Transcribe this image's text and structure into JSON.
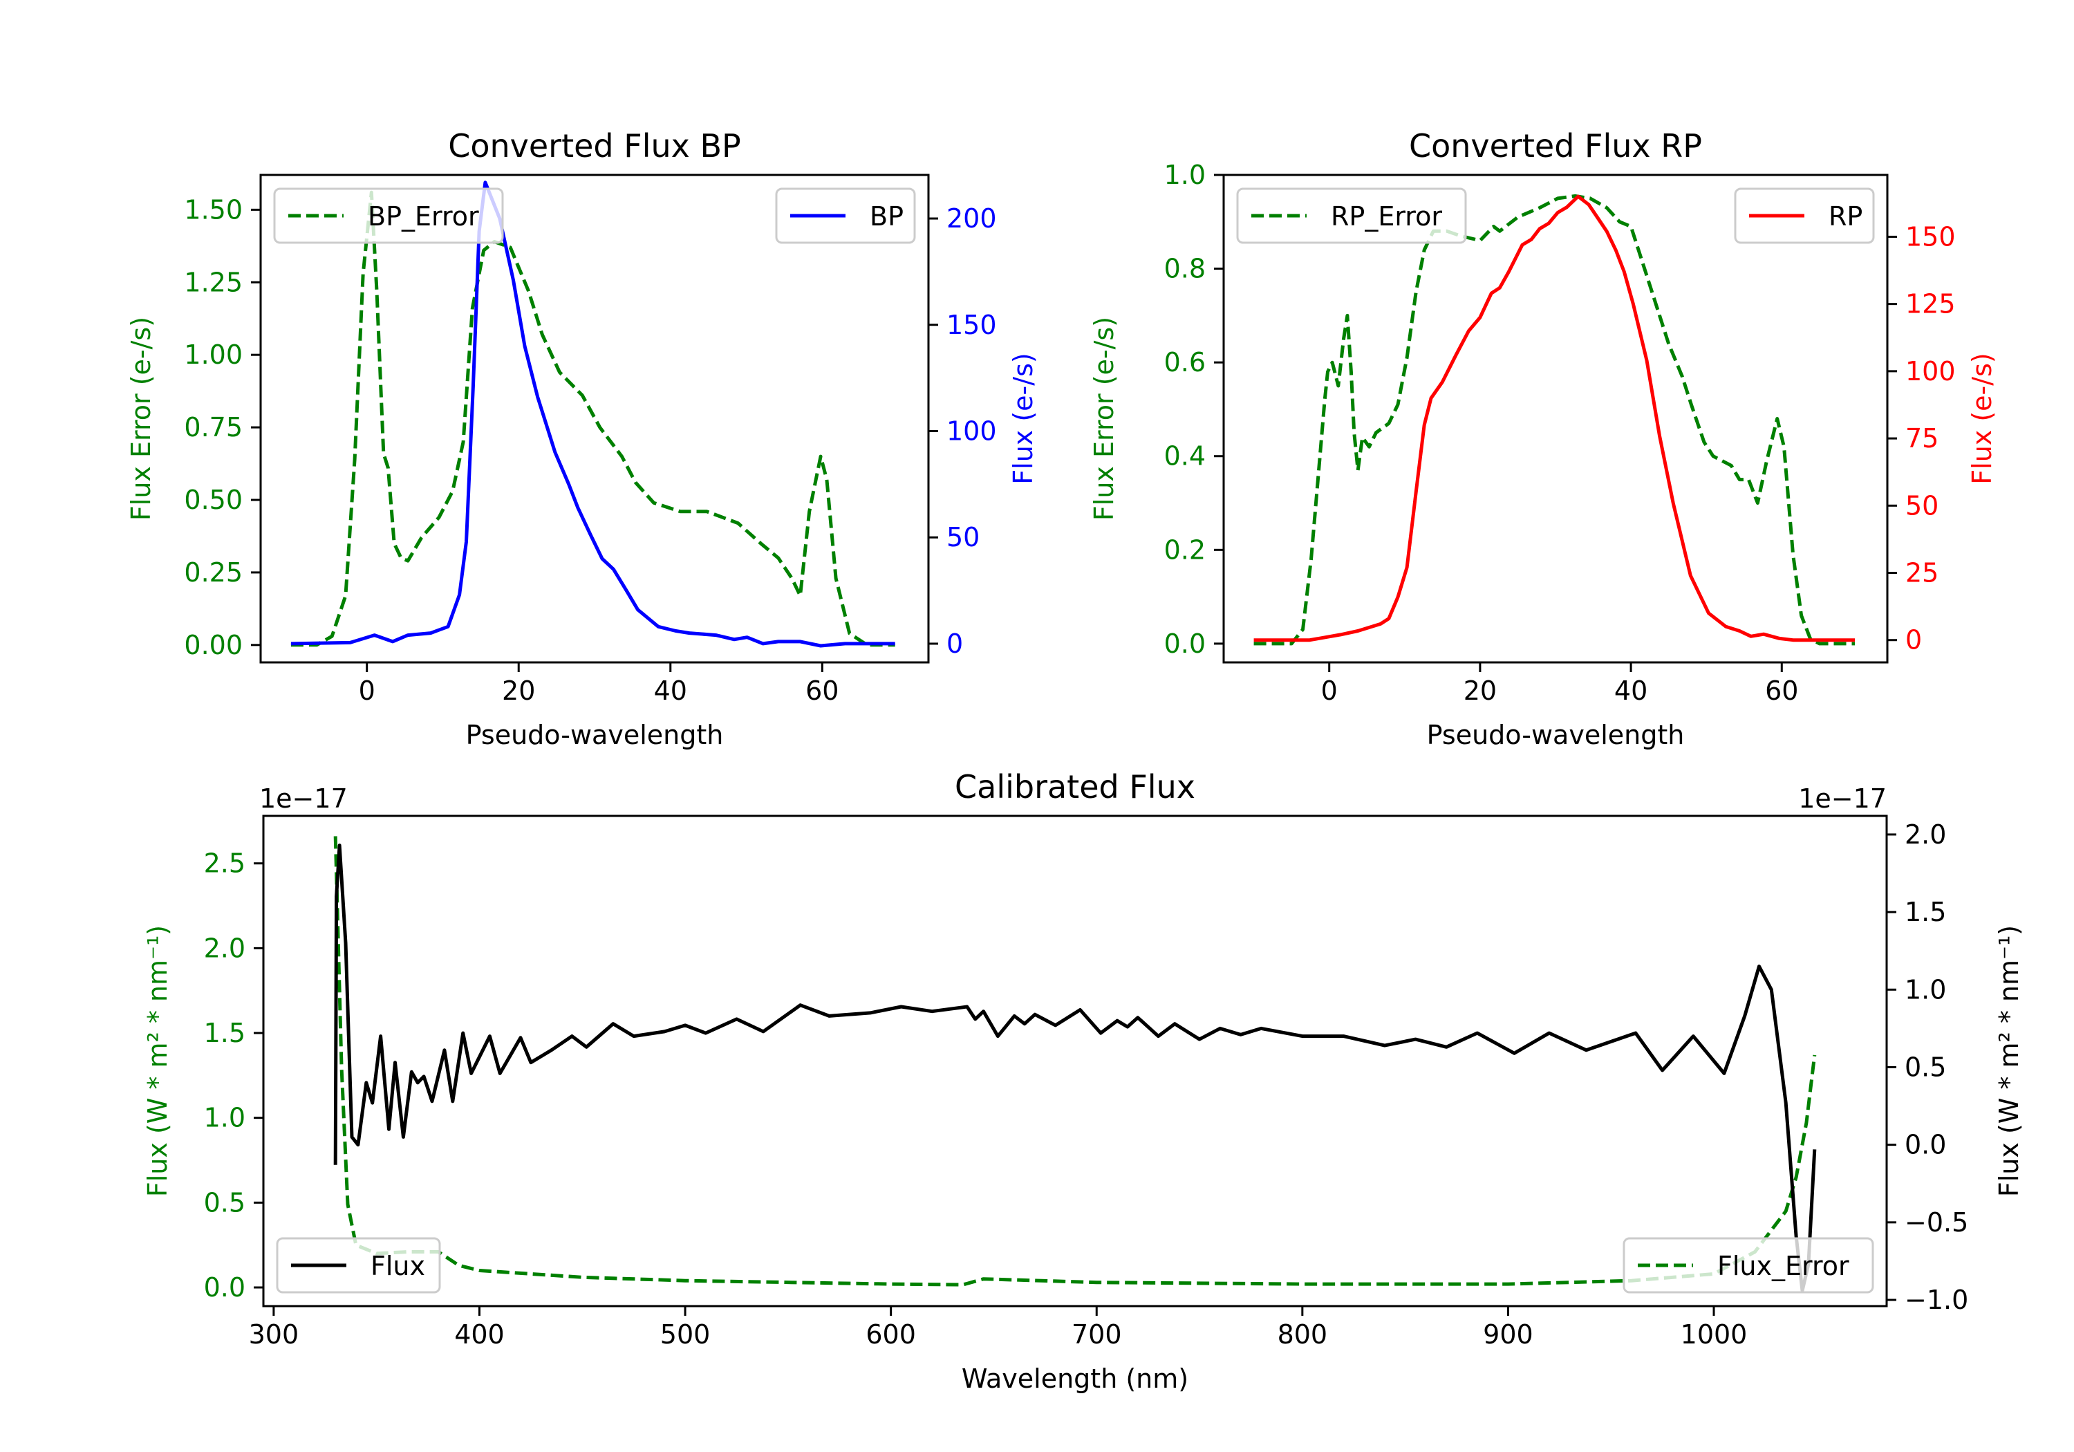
{
  "figure": {
    "background": "#ffffff"
  },
  "colors": {
    "error": "#008000",
    "bp": "#0000ff",
    "rp": "#ff0000",
    "flux": "#000000",
    "axis": "#000000",
    "legend_border": "#cccccc"
  },
  "chart_data": [
    {
      "id": "bp",
      "type": "line",
      "title": "Converted Flux BP",
      "xlabel": "Pseudo-wavelength",
      "ylabel": "Flux Error (e-/s)",
      "ylabel_right": "Flux (e-/s)",
      "xlim": [
        -14,
        74
      ],
      "ylim": [
        -0.06,
        1.62
      ],
      "ylim_right": [
        -8.8,
        220.5
      ],
      "xticks": [
        0,
        20,
        40,
        60
      ],
      "xtick_labels": [
        "0",
        "20",
        "40",
        "60"
      ],
      "yticks": [
        0.0,
        0.25,
        0.5,
        0.75,
        1.0,
        1.25,
        1.5
      ],
      "ytick_labels": [
        "0.00",
        "0.25",
        "0.50",
        "0.75",
        "1.00",
        "1.25",
        "1.50"
      ],
      "yticks_right": [
        0,
        50,
        100,
        150,
        200
      ],
      "ytick_labels_right": [
        "0",
        "50",
        "100",
        "150",
        "200"
      ],
      "grid": false,
      "legend_left": {
        "placement": "upper-left",
        "label": "BP_Error"
      },
      "legend_right": {
        "placement": "upper-right",
        "label": "BP"
      },
      "series": [
        {
          "name": "BP_Error",
          "axis": "left",
          "style": "dashed",
          "color_key": "error",
          "x": [
            -10,
            -6.6,
            -4.6,
            -2.8,
            -1.6,
            -0.5,
            0.6,
            1.3,
            2.2,
            2.8,
            3.6,
            4.5,
            5.4,
            7.2,
            9.5,
            11.3,
            12.7,
            13.9,
            15.4,
            16.8,
            18.9,
            21.3,
            23.1,
            25.4,
            28.4,
            30.7,
            33.6,
            35.4,
            37.8,
            41.3,
            44.8,
            48.9,
            51.9,
            54.2,
            56.0,
            57.1,
            58.3,
            59.8,
            60.6,
            61.8,
            63.6,
            65.9,
            69.6
          ],
          "y": [
            0,
            0,
            0.03,
            0.17,
            0.64,
            1.28,
            1.56,
            1.22,
            0.66,
            0.61,
            0.35,
            0.3,
            0.29,
            0.37,
            0.44,
            0.53,
            0.7,
            1.16,
            1.36,
            1.39,
            1.37,
            1.22,
            1.07,
            0.94,
            0.86,
            0.75,
            0.65,
            0.56,
            0.49,
            0.46,
            0.46,
            0.42,
            0.35,
            0.3,
            0.23,
            0.17,
            0.46,
            0.65,
            0.57,
            0.23,
            0.04,
            0,
            0
          ]
        },
        {
          "name": "BP",
          "axis": "right",
          "style": "solid",
          "color_key": "bp",
          "x": [
            -10,
            -2.2,
            1.0,
            3.4,
            5.4,
            8.4,
            10.7,
            12.2,
            13.1,
            14.0,
            14.8,
            15.6,
            17.5,
            19.3,
            20.8,
            22.5,
            24.8,
            26.6,
            27.8,
            29.5,
            31.0,
            32.5,
            34.2,
            35.7,
            38.4,
            40.7,
            42.5,
            46.0,
            48.4,
            50.1,
            52.2,
            54.2,
            57.1,
            59.8,
            63.0,
            69.6
          ],
          "y": [
            0,
            0.5,
            4,
            1,
            4,
            5,
            8,
            23,
            48,
            121,
            194,
            217,
            200,
            171,
            140,
            116,
            90,
            75,
            64,
            51,
            40,
            35,
            25,
            16,
            8,
            6,
            5,
            4,
            2,
            3,
            0,
            1,
            1,
            -1,
            0,
            0
          ]
        }
      ]
    },
    {
      "id": "rp",
      "type": "line",
      "title": "Converted Flux RP",
      "xlabel": "Pseudo-wavelength",
      "ylabel": "Flux Error (e-/s)",
      "ylabel_right": "Flux (e-/s)",
      "xlim": [
        -14,
        74
      ],
      "ylim": [
        -0.04,
        1.0
      ],
      "ylim_right": [
        -8.3,
        173.0
      ],
      "xticks": [
        0,
        20,
        40,
        60
      ],
      "xtick_labels": [
        "0",
        "20",
        "40",
        "60"
      ],
      "yticks": [
        0.0,
        0.2,
        0.4,
        0.6,
        0.8,
        1.0
      ],
      "ytick_labels": [
        "0.0",
        "0.2",
        "0.4",
        "0.6",
        "0.8",
        "1.0"
      ],
      "yticks_right": [
        0,
        25,
        50,
        75,
        100,
        125,
        150
      ],
      "ytick_labels_right": [
        "0",
        "25",
        "50",
        "75",
        "100",
        "125",
        "150"
      ],
      "grid": false,
      "legend_left": {
        "placement": "upper-left",
        "label": "RP_Error"
      },
      "legend_right": {
        "placement": "upper-right",
        "label": "RP"
      },
      "series": [
        {
          "name": "RP_Error",
          "axis": "left",
          "style": "dashed",
          "color_key": "error",
          "x": [
            -10,
            -5.0,
            -3.5,
            -2.4,
            -1.5,
            -0.6,
            -0.2,
            0.4,
            1.2,
            1.9,
            2.4,
            2.9,
            3.3,
            3.8,
            4.4,
            5.3,
            6.2,
            7.9,
            9.1,
            10.3,
            11.5,
            12.6,
            13.8,
            15.6,
            17.4,
            20.0,
            21.8,
            22.6,
            25.0,
            27.9,
            30.3,
            32.6,
            34.6,
            36.8,
            38.5,
            40.0,
            41.2,
            43.2,
            45.0,
            46.8,
            48.0,
            49.7,
            50.9,
            53.3,
            54.4,
            55.6,
            56.8,
            58.0,
            59.4,
            60.3,
            61.5,
            62.6,
            63.8,
            65.0,
            69.7
          ],
          "y": [
            0,
            0,
            0.03,
            0.18,
            0.35,
            0.52,
            0.58,
            0.6,
            0.55,
            0.65,
            0.7,
            0.58,
            0.45,
            0.37,
            0.44,
            0.42,
            0.45,
            0.47,
            0.51,
            0.61,
            0.75,
            0.84,
            0.88,
            0.88,
            0.87,
            0.86,
            0.89,
            0.88,
            0.91,
            0.93,
            0.95,
            0.955,
            0.95,
            0.93,
            0.9,
            0.89,
            0.83,
            0.73,
            0.64,
            0.57,
            0.51,
            0.43,
            0.4,
            0.38,
            0.35,
            0.35,
            0.3,
            0.39,
            0.48,
            0.42,
            0.19,
            0.06,
            0.01,
            0,
            0
          ]
        },
        {
          "name": "RP",
          "axis": "right",
          "style": "solid",
          "color_key": "rp",
          "x": [
            -10,
            -2.6,
            1.5,
            3.8,
            6.8,
            7.9,
            9.1,
            10.3,
            11.5,
            12.6,
            13.5,
            15.0,
            16.8,
            18.5,
            20.0,
            21.5,
            22.6,
            23.8,
            25.6,
            26.8,
            27.9,
            29.1,
            30.3,
            31.5,
            33.0,
            34.4,
            35.6,
            36.8,
            38.0,
            39.1,
            40.3,
            42.1,
            43.8,
            45.6,
            47.9,
            50.3,
            52.6,
            54.4,
            55.9,
            57.6,
            59.7,
            61.5,
            69.7
          ],
          "y": [
            0,
            0,
            2,
            3.4,
            6,
            8,
            16,
            27,
            55,
            80,
            90,
            96,
            106,
            115,
            120,
            129,
            131,
            137,
            147,
            149,
            153,
            155,
            159,
            161,
            165,
            162,
            157,
            152,
            145,
            137,
            125,
            104,
            76,
            51,
            24,
            10,
            5,
            3.4,
            1.4,
            2.2,
            0.6,
            0,
            0
          ]
        }
      ]
    },
    {
      "id": "calibrated",
      "type": "line",
      "title": "Calibrated Flux",
      "xlabel": "Wavelength (nm)",
      "ylabel": "Flux (W * m² * nm⁻¹)",
      "ylabel_right": "Flux (W * m² * nm⁻¹)",
      "offset_text_left": "1e−17",
      "offset_text_right": "1e−17",
      "xlim": [
        295,
        1084
      ],
      "ylim": [
        -0.11,
        2.78
      ],
      "ylim_right": [
        -1.04,
        2.12
      ],
      "xticks": [
        300,
        400,
        500,
        600,
        700,
        800,
        900,
        1000
      ],
      "xtick_labels": [
        "300",
        "400",
        "500",
        "600",
        "700",
        "800",
        "900",
        "1000"
      ],
      "yticks": [
        0.0,
        0.5,
        1.0,
        1.5,
        2.0,
        2.5
      ],
      "ytick_labels": [
        "0.0",
        "0.5",
        "1.0",
        "1.5",
        "2.0",
        "2.5"
      ],
      "yticks_right": [
        -1.0,
        -0.5,
        0.0,
        0.5,
        1.0,
        1.5,
        2.0
      ],
      "ytick_labels_right": [
        "−1.0",
        "−0.5",
        "0.0",
        "0.5",
        "1.0",
        "1.5",
        "2.0"
      ],
      "grid": false,
      "legend_left": {
        "placement": "lower-left",
        "label": "Flux"
      },
      "legend_right": {
        "placement": "lower-right",
        "label": "Flux_Error"
      },
      "series": [
        {
          "name": "Flux_Error",
          "axis": "left",
          "style": "dashed",
          "color_key": "error",
          "x": [
            330,
            333,
            336,
            340,
            350,
            365,
            380,
            390,
            400,
            450,
            500,
            600,
            635,
            645,
            700,
            800,
            900,
            960,
            1000,
            1020,
            1035,
            1040,
            1045,
            1049
          ],
          "y": [
            2.66,
            1.29,
            0.49,
            0.25,
            0.2,
            0.21,
            0.21,
            0.13,
            0.1,
            0.06,
            0.04,
            0.02,
            0.016,
            0.05,
            0.03,
            0.02,
            0.02,
            0.04,
            0.08,
            0.21,
            0.45,
            0.65,
            0.97,
            1.37
          ]
        },
        {
          "name": "Flux",
          "axis": "right",
          "style": "solid",
          "color_key": "flux",
          "x": [
            330,
            330.5,
            332,
            335,
            338,
            341,
            345,
            348,
            352,
            356,
            359,
            363,
            367,
            370,
            373,
            377,
            383,
            387,
            392,
            396,
            405,
            410,
            420,
            425,
            435,
            445,
            452,
            465,
            475,
            490,
            500,
            510,
            525,
            538,
            556,
            570,
            590,
            605,
            620,
            637,
            641,
            645,
            652,
            660,
            665,
            670,
            680,
            692,
            702,
            710,
            715,
            720,
            730,
            738,
            750,
            760,
            770,
            780,
            800,
            820,
            840,
            855,
            870,
            885,
            903,
            920,
            938,
            962,
            975,
            990,
            1005,
            1015,
            1022,
            1028,
            1035,
            1040,
            1043,
            1046,
            1049
          ],
          "y": [
            -0.13,
            1.6,
            1.93,
            1.3,
            0.05,
            0.0,
            0.4,
            0.27,
            0.7,
            0.1,
            0.53,
            0.05,
            0.47,
            0.4,
            0.44,
            0.28,
            0.61,
            0.28,
            0.72,
            0.46,
            0.7,
            0.46,
            0.69,
            0.53,
            0.61,
            0.7,
            0.63,
            0.78,
            0.7,
            0.73,
            0.77,
            0.72,
            0.81,
            0.73,
            0.9,
            0.83,
            0.85,
            0.89,
            0.86,
            0.89,
            0.81,
            0.86,
            0.7,
            0.83,
            0.78,
            0.84,
            0.77,
            0.87,
            0.72,
            0.8,
            0.76,
            0.82,
            0.7,
            0.78,
            0.68,
            0.75,
            0.71,
            0.75,
            0.7,
            0.7,
            0.64,
            0.68,
            0.63,
            0.72,
            0.59,
            0.72,
            0.61,
            0.72,
            0.48,
            0.7,
            0.46,
            0.83,
            1.15,
            1.0,
            0.27,
            -0.59,
            -0.94,
            -0.77,
            -0.03
          ]
        }
      ]
    }
  ]
}
